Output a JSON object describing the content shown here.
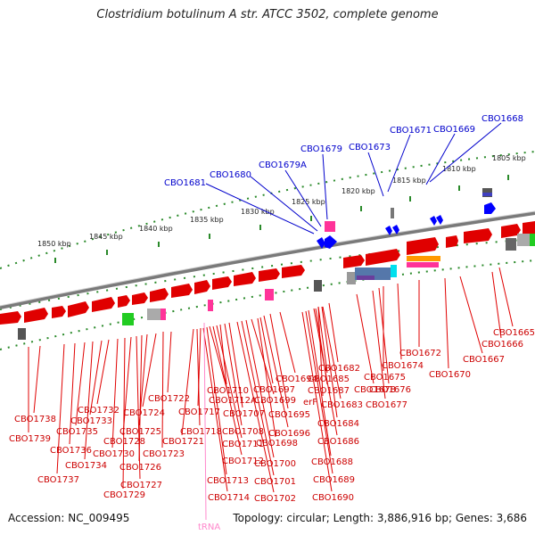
{
  "title": "Clostridium botulinum A str. ATCC 3502, complete genome",
  "accession": "Accession: NC_009495",
  "stats": "Topology: circular; Length: 3,886,916 bp; Genes: 3,686",
  "trna_label": "tRNA",
  "colors": {
    "forward_gene": "#0000ff",
    "reverse_gene": "#e00000",
    "trna": "#ff88cc",
    "backbone": "#888888",
    "tick": "#2a8a2a"
  },
  "kbp_labels": [
    "1850 kbp",
    "1845 kbp",
    "1840 kbp",
    "1835 kbp",
    "1830 kbp",
    "1825 kbp",
    "1820 kbp",
    "1815 kbp",
    "1810 kbp",
    "1805 kbp"
  ],
  "forward_labels": [
    "CBO1681",
    "CBO1680",
    "CBO1679A",
    "CBO1679",
    "CBO1673",
    "CBO1671",
    "CBO1669",
    "CBO1668"
  ],
  "reverse_labels": [
    "CBO1665",
    "CBO1666",
    "CBO1667",
    "CBO1670",
    "CBO1672",
    "CBO1674",
    "CBO1675",
    "CBO1676",
    "CBO1677",
    "CBO1678",
    "CBO1682",
    "CBO1683",
    "CBO1684",
    "CBO1685",
    "CBO1686",
    "CBO1687",
    "CBO1688",
    "CBO1689",
    "CBO1690",
    "CBO1694",
    "CBO1695",
    "CBO1696",
    "CBO1697",
    "CBO1698",
    "CBO1699",
    "CBO1700",
    "CBO1701",
    "CBO1702",
    "CBO1707",
    "CBO1708",
    "CBO1710",
    "CBO1711",
    "CBO1712",
    "CBO1712A",
    "CBO1713",
    "CBO1714",
    "CBO1717",
    "CBO1718",
    "CBO1721",
    "CBO1722",
    "CBO1723",
    "CBO1724",
    "CBO1725",
    "CBO1726",
    "CBO1727",
    "CBO1728",
    "CBO1729",
    "CBO1730",
    "CBO1732",
    "CBO1733",
    "CBO1734",
    "CBO1735",
    "CBO1736",
    "CBO1737",
    "CBO1738",
    "CBO1739",
    "erF"
  ]
}
